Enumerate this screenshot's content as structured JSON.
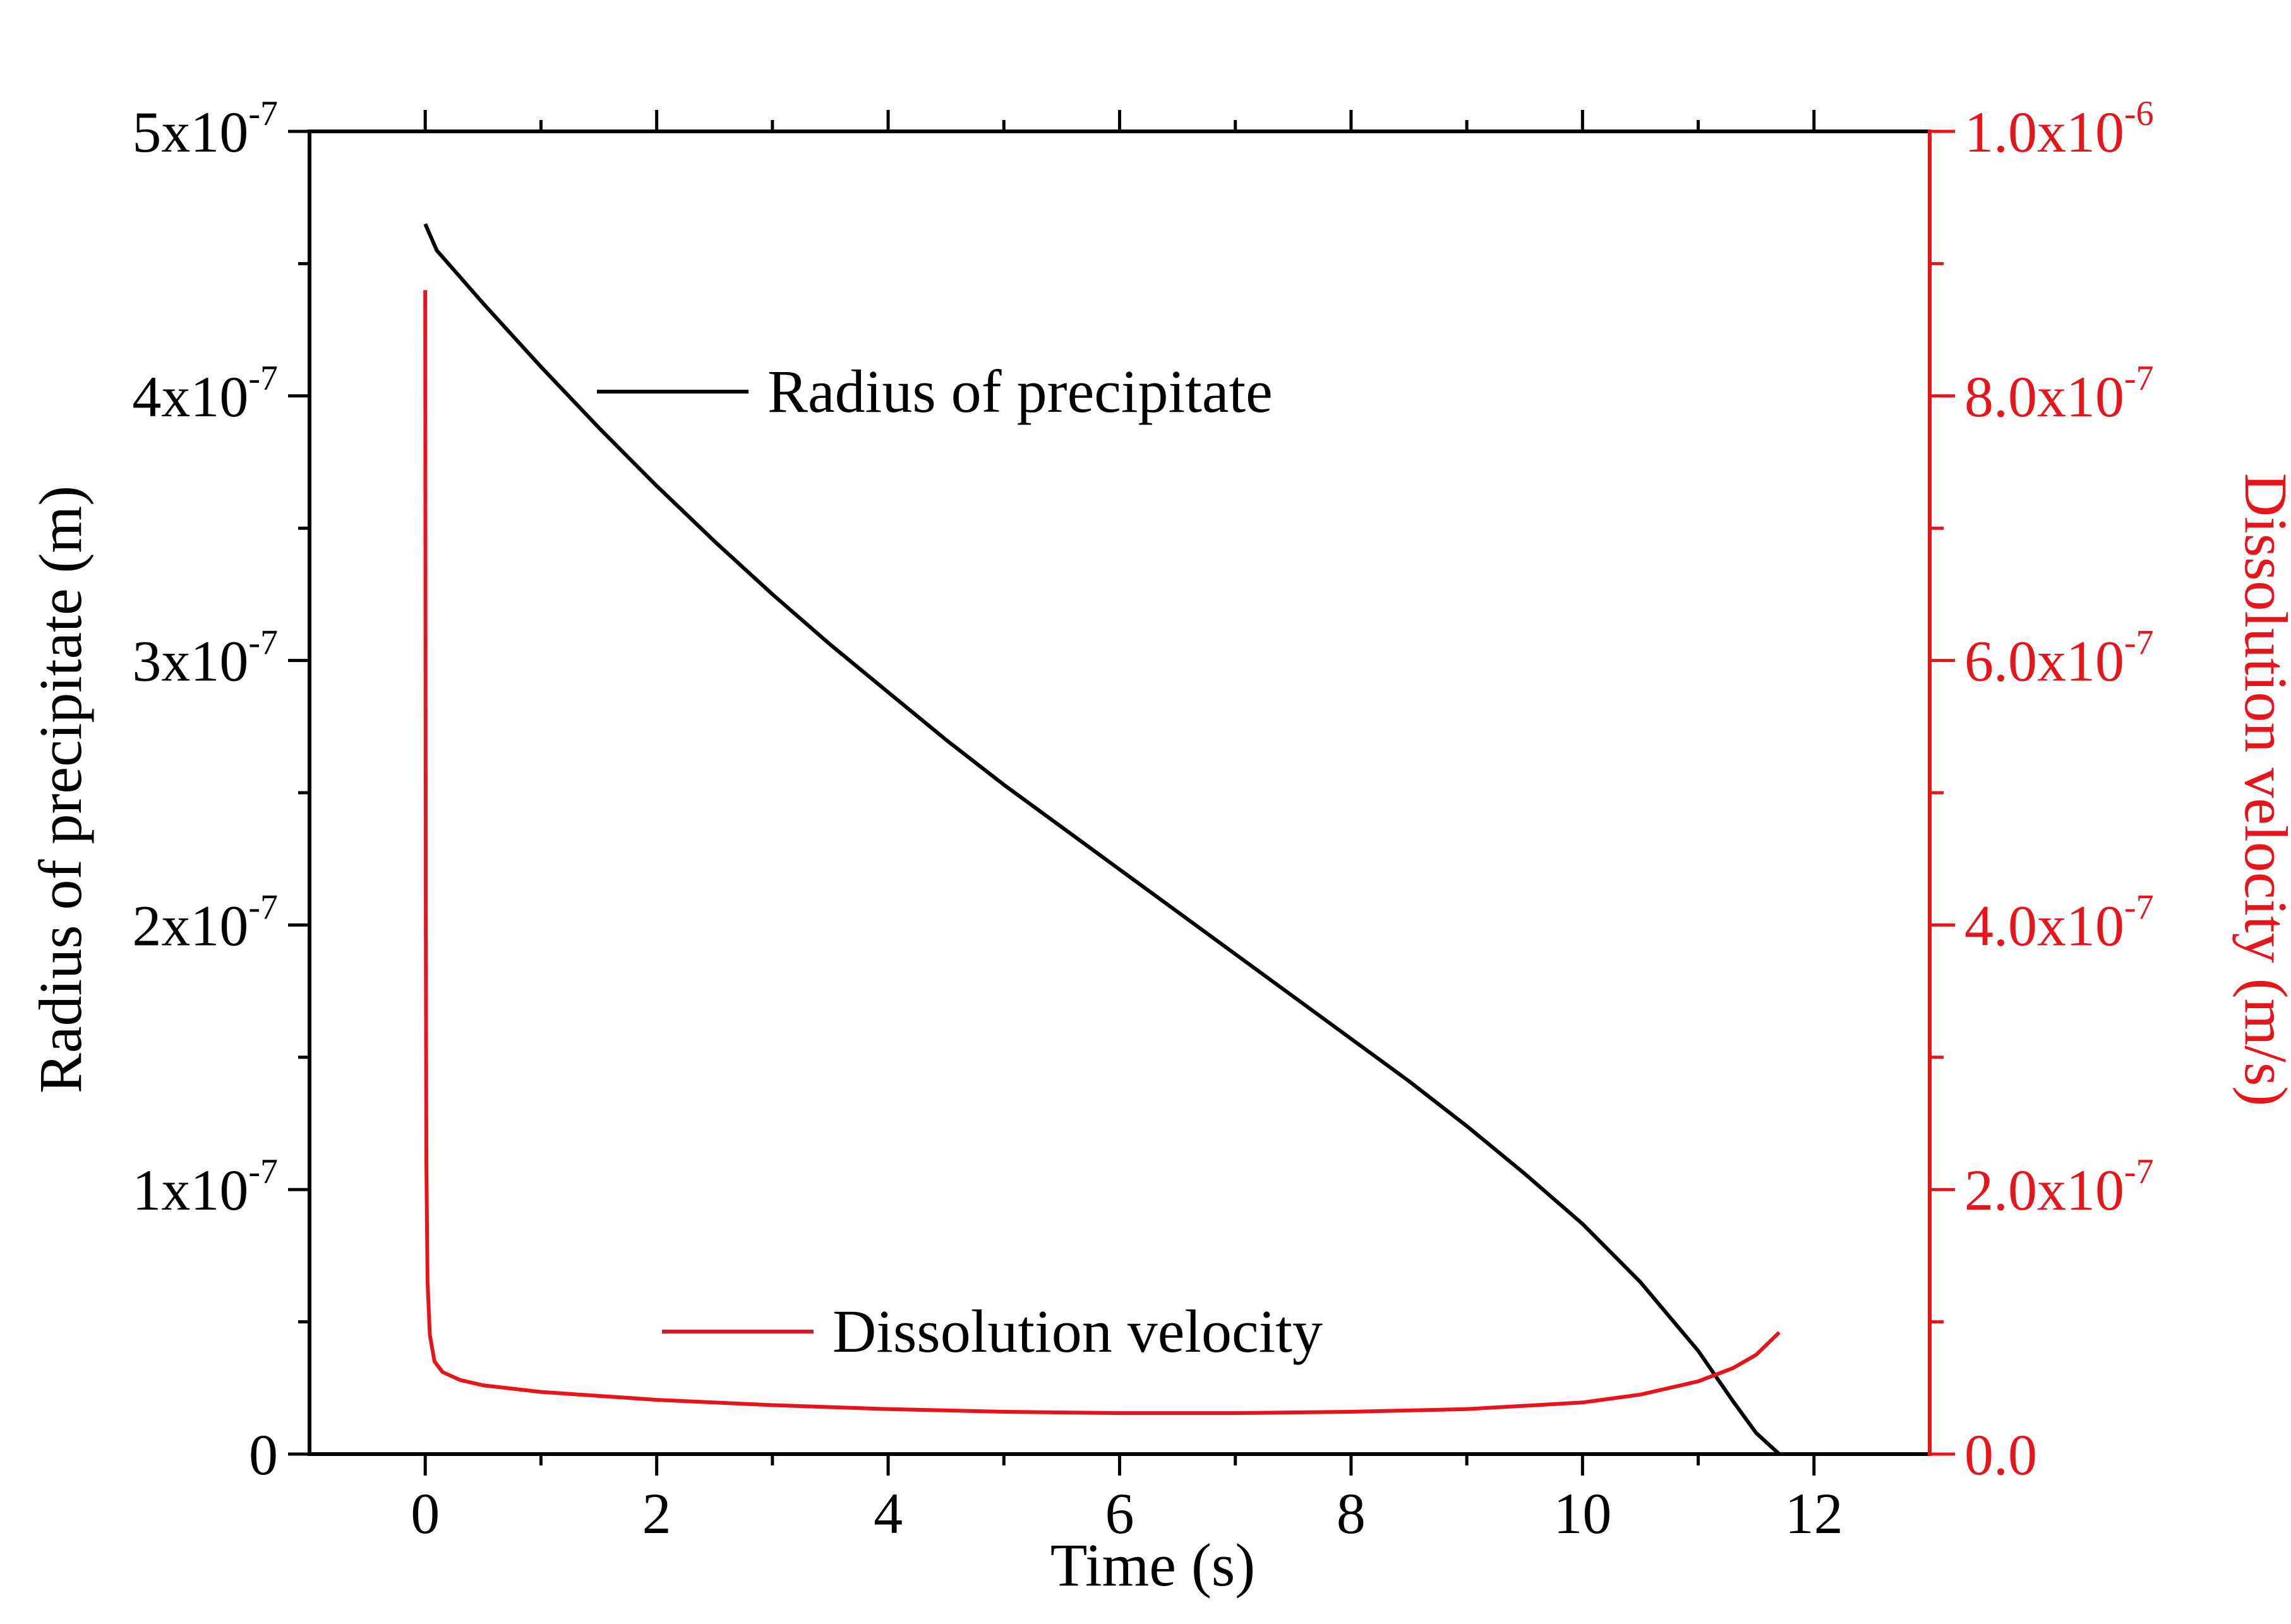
{
  "chart_data": {
    "type": "line",
    "title": "",
    "xlabel": "Time (s)",
    "ylabel_left": "Radius of precipitate (m)",
    "ylabel_right": "Dissolution velocity (m/s)",
    "xlim": [
      -1,
      13
    ],
    "ylim_left": [
      0,
      5e-07
    ],
    "ylim_right": [
      0,
      1e-06
    ],
    "x_ticks": [
      {
        "value": 0,
        "label": "0"
      },
      {
        "value": 2,
        "label": "2"
      },
      {
        "value": 4,
        "label": "4"
      },
      {
        "value": 6,
        "label": "6"
      },
      {
        "value": 8,
        "label": "8"
      },
      {
        "value": 10,
        "label": "10"
      },
      {
        "value": 12,
        "label": "12"
      }
    ],
    "y_left_ticks": [
      {
        "value": 0,
        "base": "0",
        "exp": ""
      },
      {
        "value": 1e-07,
        "base": "1x10",
        "exp": "-7"
      },
      {
        "value": 2e-07,
        "base": "2x10",
        "exp": "-7"
      },
      {
        "value": 3e-07,
        "base": "3x10",
        "exp": "-7"
      },
      {
        "value": 4e-07,
        "base": "4x10",
        "exp": "-7"
      },
      {
        "value": 5e-07,
        "base": "5x10",
        "exp": "-7"
      }
    ],
    "y_right_ticks": [
      {
        "value": 0,
        "base": "0.0",
        "exp": ""
      },
      {
        "value": 2e-07,
        "base": "2.0x10",
        "exp": "-7"
      },
      {
        "value": 4e-07,
        "base": "4.0x10",
        "exp": "-7"
      },
      {
        "value": 6e-07,
        "base": "6.0x10",
        "exp": "-7"
      },
      {
        "value": 8e-07,
        "base": "8.0x10",
        "exp": "-7"
      },
      {
        "value": 1e-06,
        "base": "1.0x10",
        "exp": "-6"
      }
    ],
    "series": [
      {
        "name": "Radius of precipitate",
        "axis": "left",
        "color": "#000000",
        "x": [
          0.0,
          0.1,
          0.3,
          0.5,
          1.0,
          1.5,
          2.0,
          2.5,
          3.0,
          3.5,
          4.0,
          4.5,
          5.0,
          5.5,
          6.0,
          6.5,
          7.0,
          7.5,
          8.0,
          8.5,
          9.0,
          9.5,
          10.0,
          10.5,
          11.0,
          11.3,
          11.5,
          11.7
        ],
        "y": [
          4.65e-07,
          4.55e-07,
          4.45e-07,
          4.35e-07,
          4.11e-07,
          3.88e-07,
          3.66e-07,
          3.45e-07,
          3.25e-07,
          3.06e-07,
          2.88e-07,
          2.7e-07,
          2.53e-07,
          2.37e-07,
          2.21e-07,
          2.05e-07,
          1.89e-07,
          1.73e-07,
          1.57e-07,
          1.41e-07,
          1.24e-07,
          1.06e-07,
          8.7e-08,
          6.5e-08,
          3.9e-08,
          2e-08,
          8e-09,
          0.0
        ]
      },
      {
        "name": "Dissolution velocity",
        "axis": "right",
        "color": "#e8141b",
        "x": [
          0.0,
          0.002,
          0.005,
          0.01,
          0.02,
          0.04,
          0.08,
          0.15,
          0.3,
          0.5,
          1.0,
          2.0,
          3.0,
          4.0,
          5.0,
          6.0,
          7.0,
          8.0,
          9.0,
          10.0,
          10.5,
          11.0,
          11.3,
          11.5,
          11.7
        ],
        "y": [
          8.8e-07,
          6.5e-07,
          4e-07,
          2.2e-07,
          1.3e-07,
          9e-08,
          7e-08,
          6.2e-08,
          5.6e-08,
          5.2e-08,
          4.7e-08,
          4.1e-08,
          3.7e-08,
          3.4e-08,
          3.2e-08,
          3.1e-08,
          3.1e-08,
          3.2e-08,
          3.4e-08,
          3.9e-08,
          4.5e-08,
          5.5e-08,
          6.5e-08,
          7.5e-08,
          9.2e-08
        ]
      }
    ],
    "legend": [
      {
        "label": "Radius of precipitate",
        "color": "#000000"
      },
      {
        "label": "Dissolution velocity",
        "color": "#e8141b"
      }
    ],
    "grid": false
  }
}
